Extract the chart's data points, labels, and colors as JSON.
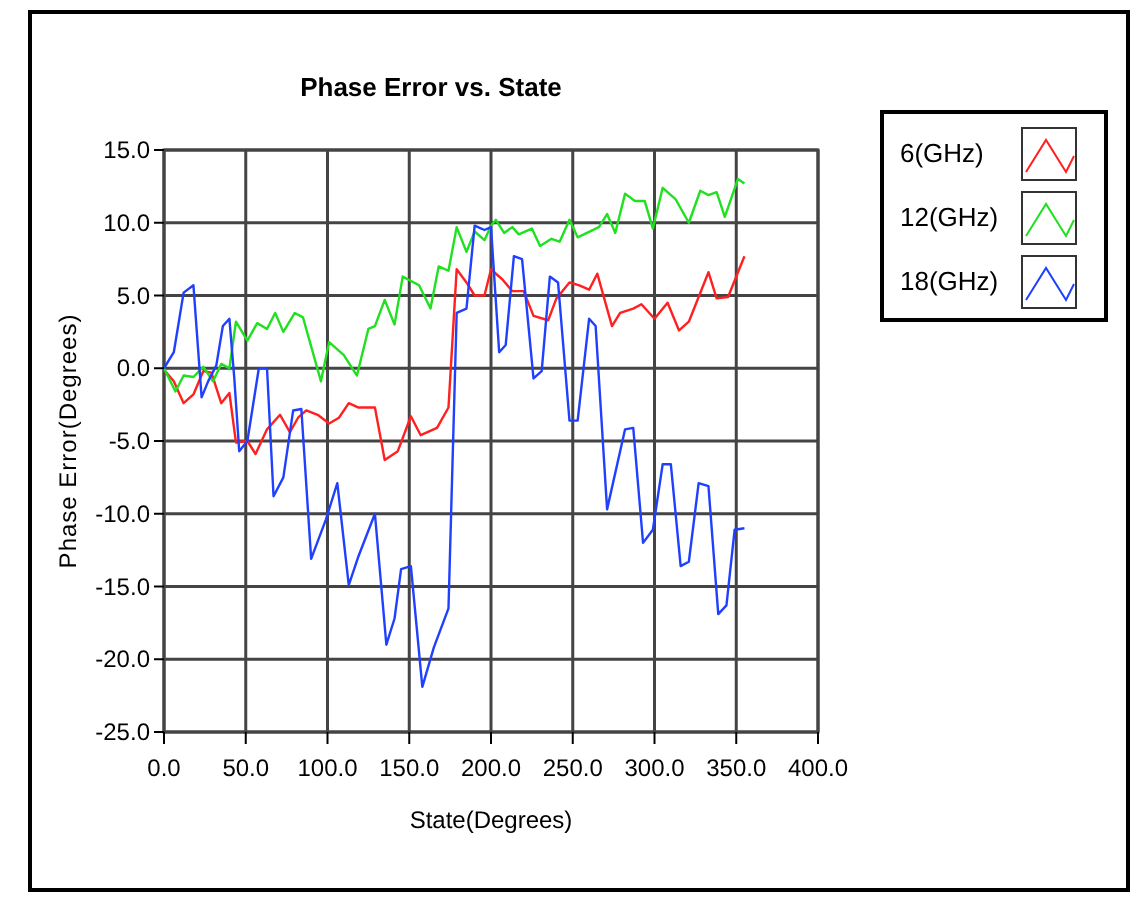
{
  "chart_data": {
    "type": "line",
    "title": "Phase Error vs. State",
    "xlabel": "State(Degrees)",
    "ylabel": "Phase Error(Degrees)",
    "xlim": [
      0,
      400
    ],
    "ylim": [
      -25,
      15
    ],
    "xticks": [
      {
        "value": 0,
        "label": "0.0"
      },
      {
        "value": 50,
        "label": "50.0"
      },
      {
        "value": 100,
        "label": "100.0"
      },
      {
        "value": 150,
        "label": "150.0"
      },
      {
        "value": 200,
        "label": "200.0"
      },
      {
        "value": 250,
        "label": "250.0"
      },
      {
        "value": 300,
        "label": "300.0"
      },
      {
        "value": 350,
        "label": "350.0"
      },
      {
        "value": 400,
        "label": "400.0"
      }
    ],
    "yticks": [
      {
        "value": -25,
        "label": "-25.0"
      },
      {
        "value": -20,
        "label": "-20.0"
      },
      {
        "value": -15,
        "label": "-15.0"
      },
      {
        "value": -10,
        "label": "-10.0"
      },
      {
        "value": -5,
        "label": "-5.0"
      },
      {
        "value": 0,
        "label": "0.0"
      },
      {
        "value": 5,
        "label": "5.0"
      },
      {
        "value": 10,
        "label": "10.0"
      },
      {
        "value": 15,
        "label": "15.0"
      }
    ],
    "grid": true,
    "legend": "top right",
    "marker": "none",
    "line_style": "solid",
    "series": [
      {
        "name": "6(GHz)",
        "color": "#ff2020",
        "x": [
          0,
          6,
          12,
          18,
          24,
          29,
          35,
          40,
          44,
          51,
          56,
          63,
          71,
          77,
          82,
          87,
          94,
          101,
          107,
          113,
          119,
          129,
          135,
          143,
          151,
          157,
          167,
          174,
          179,
          185,
          190,
          196,
          200,
          207,
          213,
          220,
          226,
          235,
          240,
          248,
          254,
          260,
          265,
          274,
          279,
          287,
          292,
          300,
          308,
          315,
          321,
          333,
          338,
          345,
          355
        ],
        "values": [
          -0.1,
          -0.9,
          -2.4,
          -1.8,
          -0.2,
          -0.3,
          -2.4,
          -1.7,
          -5.1,
          -5,
          -5.9,
          -4.2,
          -3.2,
          -4.4,
          -3.4,
          -2.9,
          -3.2,
          -3.8,
          -3.4,
          -2.4,
          -2.7,
          -2.7,
          -6.3,
          -5.7,
          -3.3,
          -4.6,
          -4.1,
          -2.7,
          6.8,
          5.9,
          5,
          5,
          6.8,
          6.1,
          5.3,
          5.3,
          3.6,
          3.3,
          4.8,
          5.9,
          5.7,
          5.4,
          6.5,
          2.9,
          3.8,
          4.1,
          4.4,
          3.4,
          4.5,
          2.6,
          3.2,
          6.6,
          4.8,
          4.9,
          7.7
        ]
      },
      {
        "name": "12(GHz)",
        "color": "#20e020",
        "x": [
          0,
          7,
          12,
          18,
          24,
          30,
          35,
          40,
          44,
          51,
          57,
          63,
          68,
          73,
          80,
          85,
          96,
          101,
          110,
          118,
          125,
          129,
          135,
          141,
          146,
          156,
          163,
          168,
          174,
          179,
          185,
          190,
          196,
          200,
          203,
          208,
          213,
          217,
          225,
          230,
          237,
          242,
          248,
          253,
          266,
          271,
          276,
          282,
          288,
          294,
          299,
          305,
          313,
          321,
          328,
          333,
          338,
          343,
          351,
          355
        ],
        "values": [
          0,
          -1.6,
          -0.5,
          -0.6,
          0.1,
          -0.9,
          0.3,
          0,
          3.2,
          1.9,
          3.1,
          2.7,
          3.8,
          2.5,
          3.8,
          3.5,
          -0.9,
          1.8,
          0.9,
          -0.5,
          2.7,
          2.9,
          4.7,
          3,
          6.3,
          5.7,
          4.1,
          7,
          6.7,
          9.7,
          8,
          9.4,
          8.8,
          9.8,
          10.2,
          9.3,
          9.7,
          9.2,
          9.6,
          8.4,
          8.9,
          8.7,
          10.2,
          9,
          9.7,
          10.6,
          9.3,
          12,
          11.5,
          11.5,
          9.6,
          12.4,
          11.6,
          10,
          12.2,
          11.9,
          12.1,
          10.4,
          13,
          12.7
        ]
      },
      {
        "name": "18(GHz)",
        "color": "#2040ff",
        "x": [
          0,
          6,
          12,
          18,
          23,
          27,
          32,
          36,
          40,
          43,
          46,
          51,
          58,
          63,
          67,
          73,
          79,
          84,
          90,
          99,
          106,
          113,
          119,
          129,
          136,
          141,
          145,
          151,
          158,
          165,
          174,
          179,
          185,
          190,
          196,
          200,
          205,
          209,
          214,
          219,
          226,
          231,
          236,
          241,
          248,
          253,
          260,
          264,
          271,
          282,
          287,
          293,
          299,
          305,
          310,
          316,
          321,
          327,
          333,
          339,
          344,
          349,
          355
        ],
        "values": [
          0,
          1.1,
          5.2,
          5.7,
          -2,
          -0.9,
          0.2,
          2.9,
          3.4,
          -0.7,
          -5.7,
          -5,
          0,
          0,
          -8.8,
          -7.5,
          -2.9,
          -2.8,
          -13.1,
          -10.4,
          -7.9,
          -14.9,
          -12.9,
          -10,
          -19,
          -17.2,
          -13.8,
          -13.6,
          -21.9,
          -19.2,
          -16.5,
          3.8,
          4.1,
          9.8,
          9.5,
          9.7,
          1.1,
          1.6,
          7.7,
          7.5,
          -0.7,
          -0.2,
          6.3,
          5.9,
          -3.6,
          -3.6,
          3.4,
          2.9,
          -9.7,
          -4.2,
          -4.1,
          -12,
          -11.1,
          -6.6,
          -6.6,
          -13.6,
          -13.3,
          -7.9,
          -8.1,
          -16.9,
          -16.3,
          -11.1,
          -11
        ]
      }
    ]
  }
}
